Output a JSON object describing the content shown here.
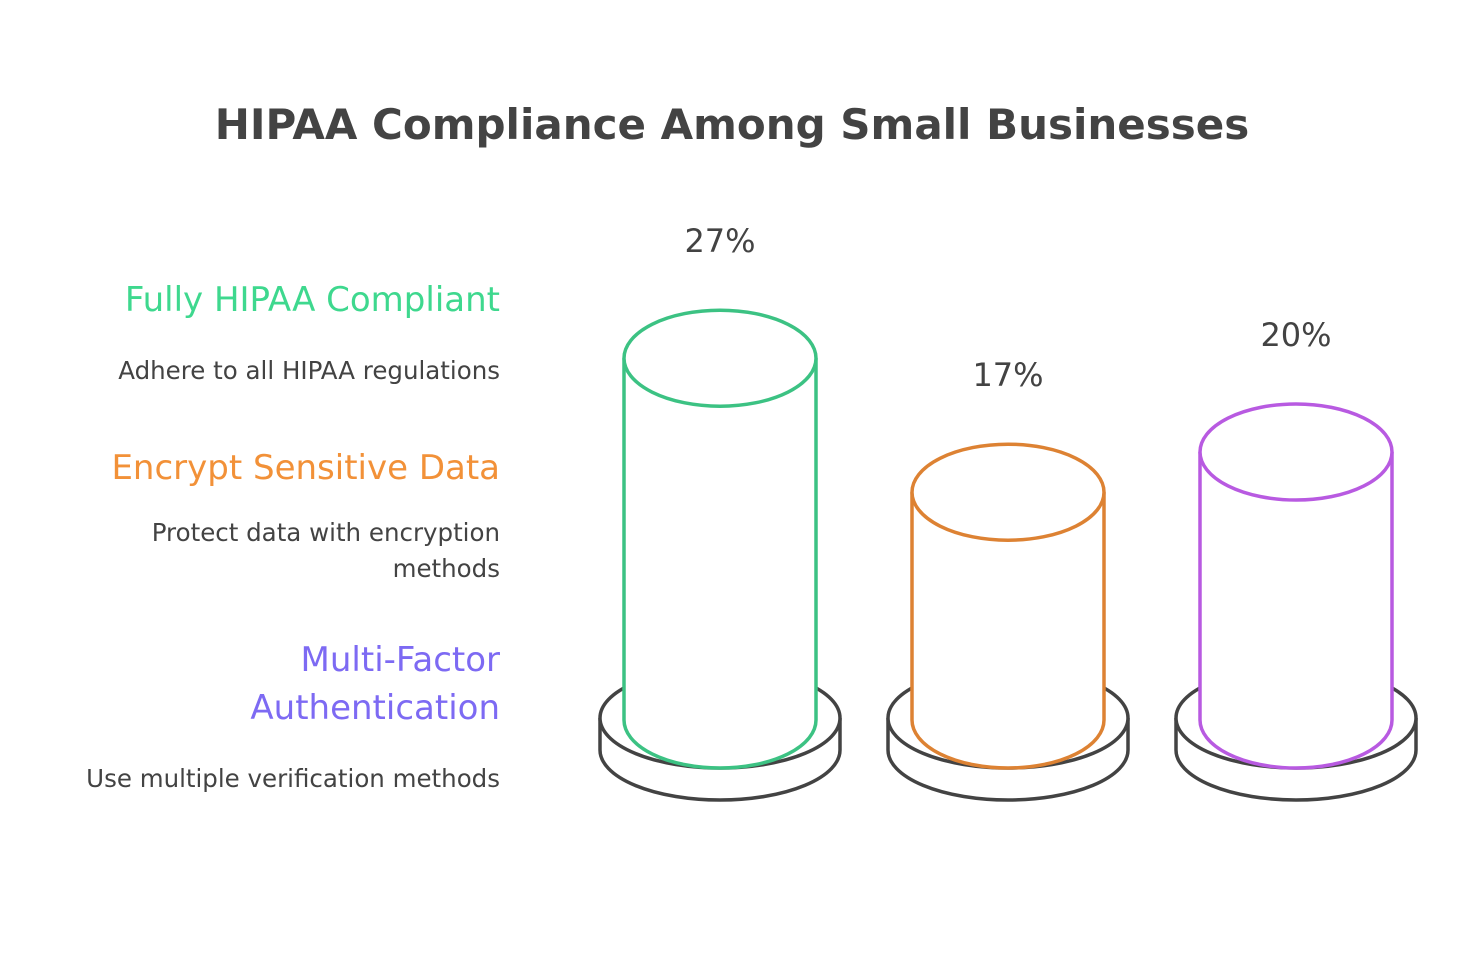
{
  "chart_data": {
    "type": "bar",
    "title": "HIPAA Compliance Among Small Businesses",
    "categories": [
      "Fully HIPAA Compliant",
      "Encrypt Sensitive Data",
      "Multi-Factor Authentication"
    ],
    "descriptions": [
      "Adhere to all HIPAA regulations",
      "Protect data with encryption methods",
      "Use multiple verification methods"
    ],
    "values": [
      27,
      17,
      20
    ],
    "value_labels": [
      "27%",
      "17%",
      "20%"
    ],
    "unit": "%",
    "colors": [
      "#3cc283",
      "#dd8233",
      "#b85ae1"
    ],
    "legend_colors": [
      "#3ed88e",
      "#f29138",
      "#7d6af3"
    ],
    "grid": false,
    "legend": "left"
  }
}
